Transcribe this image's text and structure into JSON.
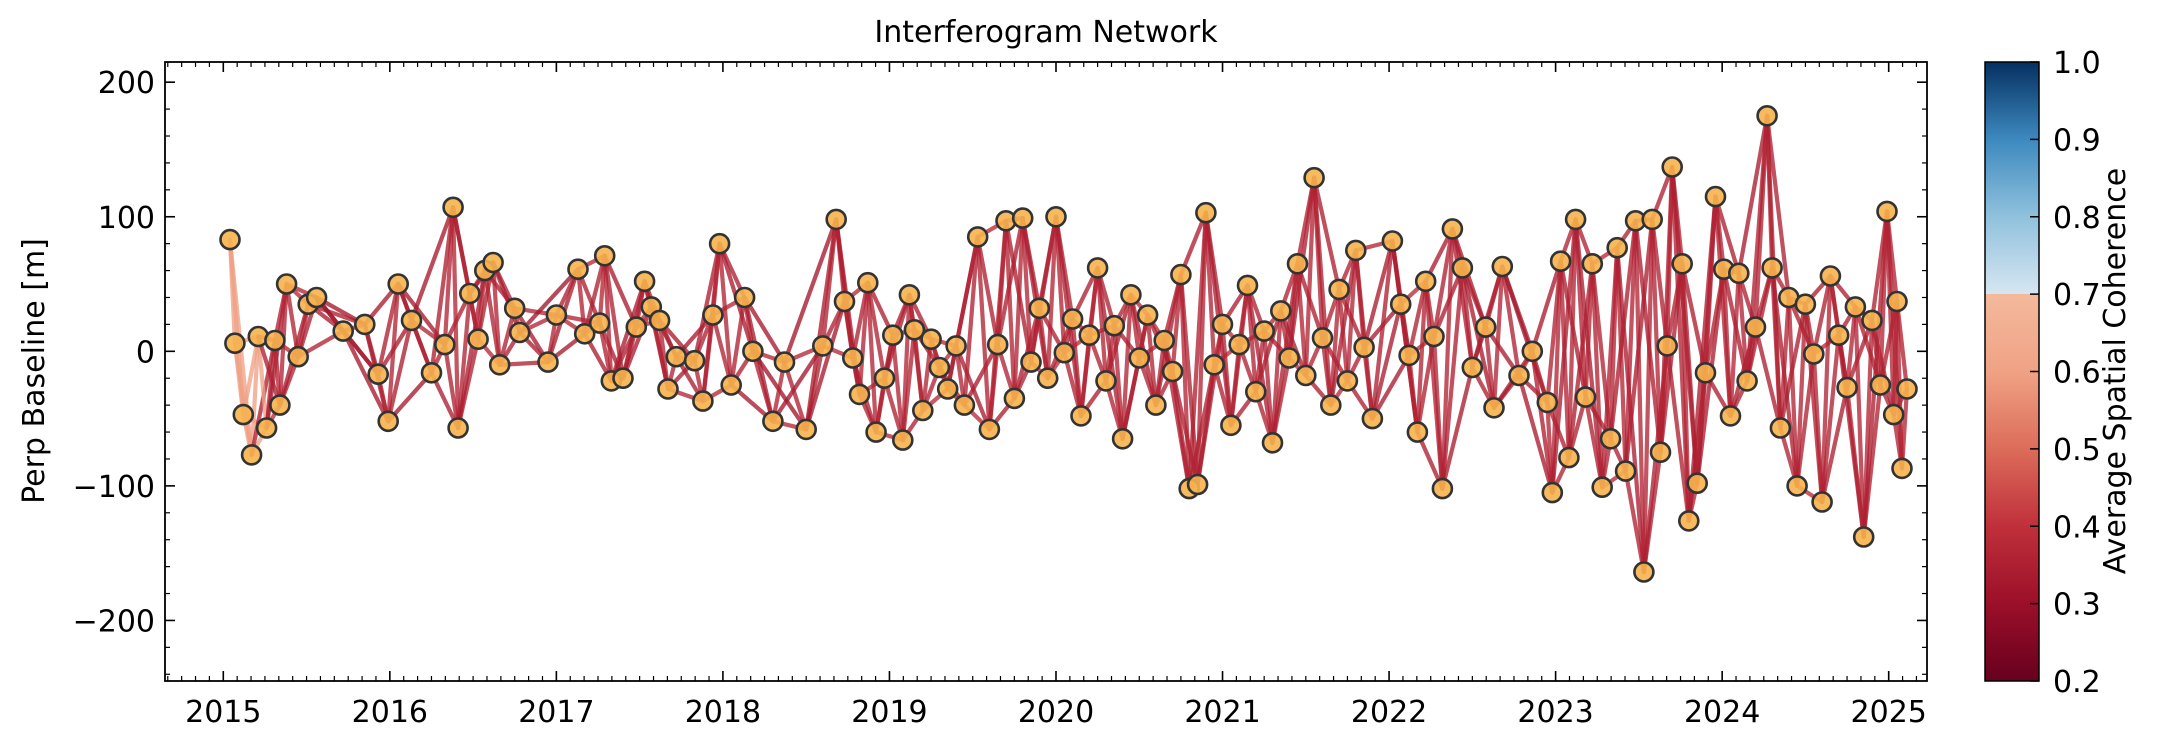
{
  "chart_data": {
    "type": "scatter",
    "title": "Interferogram Network",
    "xlabel": "",
    "ylabel": "Perp Baseline [m]",
    "xlim": [
      2014.65,
      2025.23
    ],
    "ylim": [
      -245,
      215
    ],
    "x_ticks": [
      2015,
      2016,
      2017,
      2018,
      2019,
      2020,
      2021,
      2022,
      2023,
      2024,
      2025
    ],
    "x_tick_labels": [
      "2015",
      "2016",
      "2017",
      "2018",
      "2019",
      "2020",
      "2021",
      "2022",
      "2023",
      "2024",
      "2025"
    ],
    "y_ticks": [
      -200,
      -100,
      0,
      100,
      200
    ],
    "y_tick_labels": [
      "−200",
      "−100",
      "0",
      "100",
      "200"
    ],
    "grid": false,
    "colorbar": {
      "label": "Average Spatial Coherence",
      "range": [
        0.2,
        1.0
      ],
      "ticks": [
        0.2,
        0.3,
        0.4,
        0.5,
        0.6,
        0.7,
        0.8,
        0.9,
        1.0
      ],
      "tick_labels": [
        "0.2",
        "0.3",
        "0.4",
        "0.5",
        "0.6",
        "0.7",
        "0.8",
        "0.9",
        "1.0"
      ],
      "colormap": "RdBu",
      "stops": [
        {
          "value": 0.2,
          "color": "#67001f"
        },
        {
          "value": 0.3,
          "color": "#9b0f28"
        },
        {
          "value": 0.4,
          "color": "#c0303b"
        },
        {
          "value": 0.5,
          "color": "#dc6c5a"
        },
        {
          "value": 0.6,
          "color": "#f0a285"
        },
        {
          "value": 0.7,
          "color": "#f4b99c"
        },
        {
          "value": 0.7001,
          "color": "#d6e6f1"
        },
        {
          "value": 0.8,
          "color": "#90c1dd"
        },
        {
          "value": 0.9,
          "color": "#3d89bf"
        },
        {
          "value": 1.0,
          "color": "#053061"
        }
      ]
    },
    "marker": {
      "face_color": "#f6b34e",
      "edge_color": "#333333"
    },
    "acquisitions": [
      {
        "date": 2015.04,
        "bperp": 83
      },
      {
        "date": 2015.07,
        "bperp": 6
      },
      {
        "date": 2015.12,
        "bperp": -47
      },
      {
        "date": 2015.17,
        "bperp": -77
      },
      {
        "date": 2015.21,
        "bperp": 11
      },
      {
        "date": 2015.26,
        "bperp": -57
      },
      {
        "date": 2015.31,
        "bperp": 8
      },
      {
        "date": 2015.34,
        "bperp": -40
      },
      {
        "date": 2015.38,
        "bperp": 50
      },
      {
        "date": 2015.45,
        "bperp": -4
      },
      {
        "date": 2015.51,
        "bperp": 35
      },
      {
        "date": 2015.56,
        "bperp": 40
      },
      {
        "date": 2015.72,
        "bperp": 15
      },
      {
        "date": 2015.85,
        "bperp": 20
      },
      {
        "date": 2015.93,
        "bperp": -17
      },
      {
        "date": 2015.99,
        "bperp": -52
      },
      {
        "date": 2016.05,
        "bperp": 50
      },
      {
        "date": 2016.13,
        "bperp": 23
      },
      {
        "date": 2016.25,
        "bperp": -16
      },
      {
        "date": 2016.33,
        "bperp": 5
      },
      {
        "date": 2016.38,
        "bperp": 107
      },
      {
        "date": 2016.41,
        "bperp": -57
      },
      {
        "date": 2016.48,
        "bperp": 43
      },
      {
        "date": 2016.53,
        "bperp": 9
      },
      {
        "date": 2016.57,
        "bperp": 60
      },
      {
        "date": 2016.62,
        "bperp": 66
      },
      {
        "date": 2016.66,
        "bperp": -10
      },
      {
        "date": 2016.75,
        "bperp": 32
      },
      {
        "date": 2016.78,
        "bperp": 14
      },
      {
        "date": 2016.95,
        "bperp": -8
      },
      {
        "date": 2017.0,
        "bperp": 27
      },
      {
        "date": 2017.13,
        "bperp": 61
      },
      {
        "date": 2017.17,
        "bperp": 13
      },
      {
        "date": 2017.26,
        "bperp": 21
      },
      {
        "date": 2017.29,
        "bperp": 71
      },
      {
        "date": 2017.33,
        "bperp": -22
      },
      {
        "date": 2017.4,
        "bperp": -20
      },
      {
        "date": 2017.48,
        "bperp": 18
      },
      {
        "date": 2017.53,
        "bperp": 52
      },
      {
        "date": 2017.57,
        "bperp": 33
      },
      {
        "date": 2017.62,
        "bperp": 23
      },
      {
        "date": 2017.67,
        "bperp": -28
      },
      {
        "date": 2017.72,
        "bperp": -4
      },
      {
        "date": 2017.83,
        "bperp": -7
      },
      {
        "date": 2017.88,
        "bperp": -37
      },
      {
        "date": 2017.94,
        "bperp": 27
      },
      {
        "date": 2017.98,
        "bperp": 80
      },
      {
        "date": 2018.05,
        "bperp": -25
      },
      {
        "date": 2018.13,
        "bperp": 40
      },
      {
        "date": 2018.18,
        "bperp": 0
      },
      {
        "date": 2018.3,
        "bperp": -52
      },
      {
        "date": 2018.37,
        "bperp": -8
      },
      {
        "date": 2018.5,
        "bperp": -58
      },
      {
        "date": 2018.6,
        "bperp": 4
      },
      {
        "date": 2018.68,
        "bperp": 98
      },
      {
        "date": 2018.73,
        "bperp": 37
      },
      {
        "date": 2018.78,
        "bperp": -5
      },
      {
        "date": 2018.82,
        "bperp": -32
      },
      {
        "date": 2018.87,
        "bperp": 51
      },
      {
        "date": 2018.92,
        "bperp": -60
      },
      {
        "date": 2018.97,
        "bperp": -20
      },
      {
        "date": 2019.02,
        "bperp": 12
      },
      {
        "date": 2019.08,
        "bperp": -66
      },
      {
        "date": 2019.12,
        "bperp": 42
      },
      {
        "date": 2019.15,
        "bperp": 16
      },
      {
        "date": 2019.2,
        "bperp": -44
      },
      {
        "date": 2019.25,
        "bperp": 9
      },
      {
        "date": 2019.3,
        "bperp": -12
      },
      {
        "date": 2019.35,
        "bperp": -28
      },
      {
        "date": 2019.4,
        "bperp": 4
      },
      {
        "date": 2019.45,
        "bperp": -40
      },
      {
        "date": 2019.53,
        "bperp": 85
      },
      {
        "date": 2019.6,
        "bperp": -58
      },
      {
        "date": 2019.65,
        "bperp": 5
      },
      {
        "date": 2019.7,
        "bperp": 97
      },
      {
        "date": 2019.75,
        "bperp": -35
      },
      {
        "date": 2019.8,
        "bperp": 99
      },
      {
        "date": 2019.85,
        "bperp": -8
      },
      {
        "date": 2019.9,
        "bperp": 32
      },
      {
        "date": 2019.95,
        "bperp": -20
      },
      {
        "date": 2020.0,
        "bperp": 100
      },
      {
        "date": 2020.05,
        "bperp": -1
      },
      {
        "date": 2020.1,
        "bperp": 24
      },
      {
        "date": 2020.15,
        "bperp": -48
      },
      {
        "date": 2020.2,
        "bperp": 12
      },
      {
        "date": 2020.25,
        "bperp": 62
      },
      {
        "date": 2020.3,
        "bperp": -22
      },
      {
        "date": 2020.35,
        "bperp": 19
      },
      {
        "date": 2020.4,
        "bperp": -65
      },
      {
        "date": 2020.45,
        "bperp": 42
      },
      {
        "date": 2020.5,
        "bperp": -5
      },
      {
        "date": 2020.55,
        "bperp": 27
      },
      {
        "date": 2020.6,
        "bperp": -40
      },
      {
        "date": 2020.65,
        "bperp": 8
      },
      {
        "date": 2020.7,
        "bperp": -15
      },
      {
        "date": 2020.75,
        "bperp": 57
      },
      {
        "date": 2020.8,
        "bperp": -102
      },
      {
        "date": 2020.85,
        "bperp": -99
      },
      {
        "date": 2020.9,
        "bperp": 103
      },
      {
        "date": 2020.95,
        "bperp": -10
      },
      {
        "date": 2021.0,
        "bperp": 20
      },
      {
        "date": 2021.05,
        "bperp": -55
      },
      {
        "date": 2021.1,
        "bperp": 5
      },
      {
        "date": 2021.15,
        "bperp": 49
      },
      {
        "date": 2021.2,
        "bperp": -30
      },
      {
        "date": 2021.25,
        "bperp": 15
      },
      {
        "date": 2021.3,
        "bperp": -68
      },
      {
        "date": 2021.35,
        "bperp": 30
      },
      {
        "date": 2021.4,
        "bperp": -5
      },
      {
        "date": 2021.45,
        "bperp": 65
      },
      {
        "date": 2021.5,
        "bperp": -18
      },
      {
        "date": 2021.55,
        "bperp": 129
      },
      {
        "date": 2021.6,
        "bperp": 10
      },
      {
        "date": 2021.65,
        "bperp": -40
      },
      {
        "date": 2021.7,
        "bperp": 46
      },
      {
        "date": 2021.75,
        "bperp": -22
      },
      {
        "date": 2021.8,
        "bperp": 75
      },
      {
        "date": 2021.85,
        "bperp": 3
      },
      {
        "date": 2021.9,
        "bperp": -50
      },
      {
        "date": 2022.02,
        "bperp": 82
      },
      {
        "date": 2022.07,
        "bperp": 35
      },
      {
        "date": 2022.12,
        "bperp": -3
      },
      {
        "date": 2022.17,
        "bperp": -60
      },
      {
        "date": 2022.22,
        "bperp": 52
      },
      {
        "date": 2022.27,
        "bperp": 11
      },
      {
        "date": 2022.32,
        "bperp": -102
      },
      {
        "date": 2022.38,
        "bperp": 91
      },
      {
        "date": 2022.44,
        "bperp": 62
      },
      {
        "date": 2022.5,
        "bperp": -12
      },
      {
        "date": 2022.58,
        "bperp": 18
      },
      {
        "date": 2022.63,
        "bperp": -42
      },
      {
        "date": 2022.68,
        "bperp": 63
      },
      {
        "date": 2022.78,
        "bperp": -18
      },
      {
        "date": 2022.86,
        "bperp": 0
      },
      {
        "date": 2022.95,
        "bperp": -38
      },
      {
        "date": 2022.98,
        "bperp": -105
      },
      {
        "date": 2023.03,
        "bperp": 67
      },
      {
        "date": 2023.08,
        "bperp": -79
      },
      {
        "date": 2023.12,
        "bperp": 98
      },
      {
        "date": 2023.18,
        "bperp": -34
      },
      {
        "date": 2023.22,
        "bperp": 65
      },
      {
        "date": 2023.28,
        "bperp": -101
      },
      {
        "date": 2023.33,
        "bperp": -65
      },
      {
        "date": 2023.37,
        "bperp": 77
      },
      {
        "date": 2023.42,
        "bperp": -89
      },
      {
        "date": 2023.48,
        "bperp": 97
      },
      {
        "date": 2023.53,
        "bperp": -164
      },
      {
        "date": 2023.58,
        "bperp": 98
      },
      {
        "date": 2023.63,
        "bperp": -75
      },
      {
        "date": 2023.67,
        "bperp": 4
      },
      {
        "date": 2023.7,
        "bperp": 137
      },
      {
        "date": 2023.76,
        "bperp": 65
      },
      {
        "date": 2023.8,
        "bperp": -126
      },
      {
        "date": 2023.85,
        "bperp": -98
      },
      {
        "date": 2023.9,
        "bperp": -16
      },
      {
        "date": 2023.96,
        "bperp": 115
      },
      {
        "date": 2024.01,
        "bperp": 61
      },
      {
        "date": 2024.05,
        "bperp": -48
      },
      {
        "date": 2024.1,
        "bperp": 58
      },
      {
        "date": 2024.15,
        "bperp": -22
      },
      {
        "date": 2024.2,
        "bperp": 18
      },
      {
        "date": 2024.27,
        "bperp": 175
      },
      {
        "date": 2024.3,
        "bperp": 62
      },
      {
        "date": 2024.35,
        "bperp": -57
      },
      {
        "date": 2024.4,
        "bperp": 40
      },
      {
        "date": 2024.45,
        "bperp": -100
      },
      {
        "date": 2024.5,
        "bperp": 35
      },
      {
        "date": 2024.55,
        "bperp": -2
      },
      {
        "date": 2024.6,
        "bperp": -112
      },
      {
        "date": 2024.65,
        "bperp": 56
      },
      {
        "date": 2024.7,
        "bperp": 12
      },
      {
        "date": 2024.75,
        "bperp": -27
      },
      {
        "date": 2024.8,
        "bperp": 33
      },
      {
        "date": 2024.85,
        "bperp": -138
      },
      {
        "date": 2024.9,
        "bperp": 23
      },
      {
        "date": 2024.95,
        "bperp": -25
      },
      {
        "date": 2024.99,
        "bperp": 104
      },
      {
        "date": 2025.03,
        "bperp": -47
      },
      {
        "date": 2025.05,
        "bperp": 37
      },
      {
        "date": 2025.08,
        "bperp": -87
      },
      {
        "date": 2025.11,
        "bperp": -28
      }
    ]
  }
}
